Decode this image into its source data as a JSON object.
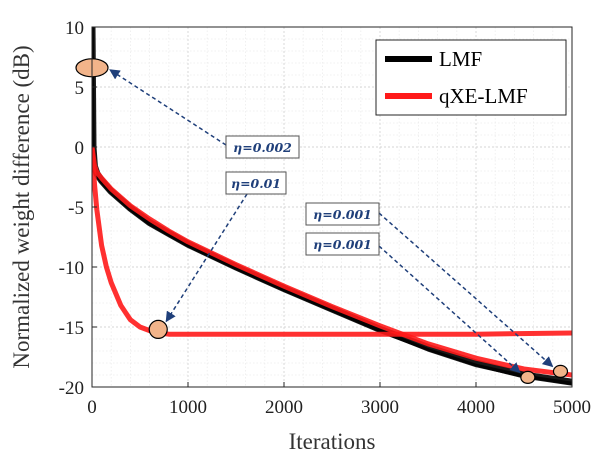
{
  "chart_data": {
    "type": "line",
    "title": "",
    "xlabel": "Iterations",
    "ylabel": "Normalized weight difference (dB)",
    "xlim": [
      0,
      5000
    ],
    "ylim": [
      -20,
      10
    ],
    "xticks": [
      0,
      1000,
      2000,
      3000,
      4000,
      5000
    ],
    "yticks": [
      10,
      5,
      0,
      -5,
      -10,
      -15,
      -20
    ],
    "grid": true,
    "legend_position": "top-right",
    "colors": {
      "LMF": "#000000",
      "qXE-LMF": "#ff1a1a"
    },
    "series": [
      {
        "name": "LMF",
        "x": [
          0,
          10,
          25,
          50,
          100,
          200,
          400,
          600,
          800,
          1000,
          1500,
          2000,
          2500,
          3000,
          3500,
          4000,
          4500,
          5000
        ],
        "y": [
          10,
          0,
          -1.6,
          -2.2,
          -2.8,
          -3.7,
          -5.1,
          -6.3,
          -7.2,
          -8.1,
          -10.0,
          -11.8,
          -13.5,
          -15.2,
          -16.7,
          -18.0,
          -19.0,
          -19.6
        ]
      },
      {
        "name": "LMF",
        "x": [
          0,
          10,
          25,
          50,
          100,
          200,
          400,
          600,
          800,
          1000,
          1500,
          2000,
          2500,
          3000,
          3500,
          4000,
          4500,
          5000
        ],
        "y": [
          10,
          0,
          -1.7,
          -2.3,
          -2.9,
          -3.8,
          -5.2,
          -6.4,
          -7.3,
          -8.2,
          -10.1,
          -11.9,
          -13.6,
          -15.3,
          -16.9,
          -18.2,
          -19.1,
          -19.7
        ]
      },
      {
        "name": "qXE-LMF",
        "x": [
          0,
          25,
          50,
          100,
          150,
          200,
          300,
          400,
          500,
          600,
          700,
          800,
          1000,
          2000,
          3000,
          4000,
          5000
        ],
        "y": [
          0,
          -3.0,
          -5.2,
          -8.2,
          -10.0,
          -11.3,
          -13.2,
          -14.4,
          -15.0,
          -15.3,
          -15.5,
          -15.6,
          -15.6,
          -15.6,
          -15.6,
          -15.6,
          -15.5
        ]
      },
      {
        "name": "qXE-LMF",
        "x": [
          0,
          25,
          50,
          100,
          200,
          400,
          600,
          800,
          1000,
          1500,
          2000,
          2500,
          3000,
          3500,
          4000,
          4500,
          5000
        ],
        "y": [
          0,
          -1.5,
          -2.1,
          -2.6,
          -3.5,
          -4.9,
          -6.0,
          -7.0,
          -7.9,
          -9.8,
          -11.6,
          -13.3,
          -14.9,
          -16.4,
          -17.6,
          -18.5,
          -19.0
        ]
      }
    ],
    "markers": [
      {
        "x": 0,
        "y": 6.6
      },
      {
        "x": 690,
        "y": -15.2
      },
      {
        "x": 4540,
        "y": -19.2
      },
      {
        "x": 4880,
        "y": -18.7
      }
    ],
    "annotations": [
      {
        "text": "η=0.002",
        "target": [
          0,
          6.6
        ]
      },
      {
        "text": "η=0.01",
        "target": [
          690,
          -15.2
        ]
      },
      {
        "text": "η=0.001",
        "target": [
          4880,
          -18.7
        ]
      },
      {
        "text": "η=0.001",
        "target": [
          4540,
          -19.2
        ]
      }
    ]
  }
}
